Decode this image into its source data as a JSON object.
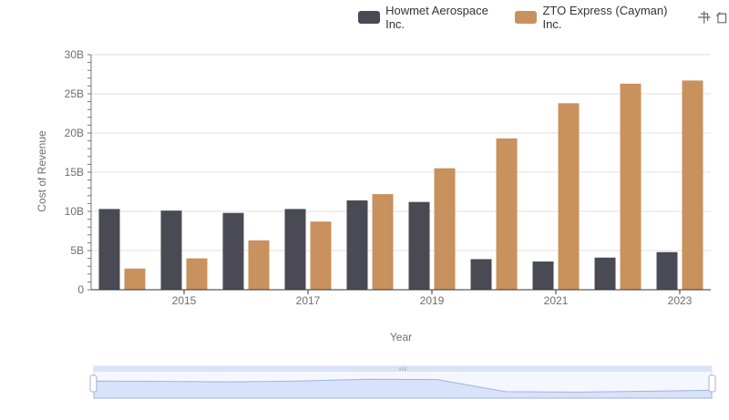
{
  "chart_data": {
    "type": "bar",
    "x": [
      2014,
      2015,
      2016,
      2017,
      2018,
      2019,
      2020,
      2021,
      2022,
      2023
    ],
    "x_tick_labels": [
      "2015",
      "2017",
      "2019",
      "2021",
      "2023"
    ],
    "series": [
      {
        "name": "Howmet Aerospace Inc.",
        "color": "#4a4a55",
        "values": [
          10.3,
          10.1,
          9.8,
          10.3,
          11.4,
          11.2,
          3.9,
          3.6,
          4.1,
          4.8
        ]
      },
      {
        "name": "ZTO Express (Cayman) Inc.",
        "color": "#c8915d",
        "values": [
          2.7,
          4.0,
          6.3,
          8.7,
          12.2,
          15.5,
          19.3,
          23.8,
          26.3,
          26.7
        ]
      }
    ],
    "y_ticks": [
      "0",
      "5B",
      "10B",
      "15B",
      "20B",
      "25B",
      "30B"
    ],
    "ylim": [
      0,
      30
    ],
    "xlabel": "Year",
    "ylabel": "Cost of Revenue",
    "grid": true,
    "legend_position": "top-right"
  },
  "toolbox": {
    "icons": [
      "zoom-icon",
      "zoom-reset-icon"
    ]
  },
  "slider": {
    "range": [
      0,
      100
    ]
  }
}
